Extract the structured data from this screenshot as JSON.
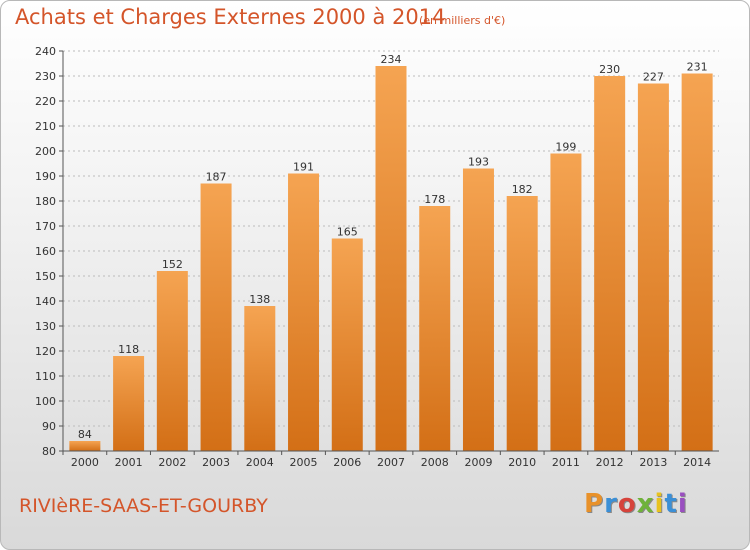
{
  "header": {
    "title": "Achats et Charges Externes 2000 à 2014",
    "unit": "(en milliers d'€)"
  },
  "footer": {
    "commune": "RIVIèRE-SAAS-ET-GOURBY",
    "logo": "Proxiti",
    "logo_colors": [
      "#e8912a",
      "#3b8fd6",
      "#d6433b",
      "#6fb23a",
      "#e8c21f",
      "#3b8fd6",
      "#9a4fc0"
    ]
  },
  "colors": {
    "bar_top": "#f5a452",
    "bar_bottom": "#d36f16",
    "grid": "#bcbcbc",
    "title": "#d4552a"
  },
  "chart_data": {
    "type": "bar",
    "title": "Achats et Charges Externes 2000 à 2014",
    "subtitle": "(en milliers d'€)",
    "xlabel": "",
    "ylabel": "",
    "categories": [
      "2000",
      "2001",
      "2002",
      "2003",
      "2004",
      "2005",
      "2006",
      "2007",
      "2008",
      "2009",
      "2010",
      "2011",
      "2012",
      "2013",
      "2014"
    ],
    "values": [
      84,
      118,
      152,
      187,
      138,
      191,
      165,
      234,
      178,
      193,
      182,
      199,
      230,
      227,
      231
    ],
    "ylim": [
      80,
      240
    ],
    "yticks": [
      80,
      90,
      100,
      110,
      120,
      130,
      140,
      150,
      160,
      170,
      180,
      190,
      200,
      210,
      220,
      230,
      240
    ],
    "grid": true,
    "data_labels": true
  }
}
